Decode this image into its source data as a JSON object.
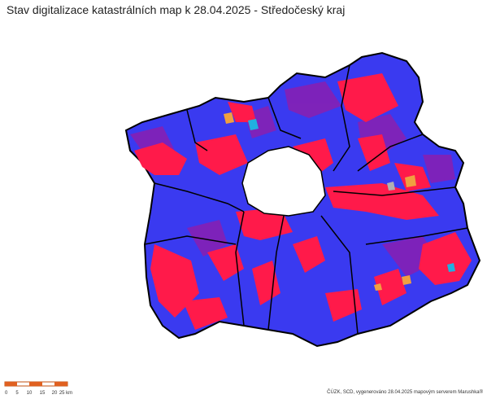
{
  "title": "Stav digitalizace katastrálních map k 28.04.2025 - Středočeský kraj",
  "scale_bar": {
    "labels": [
      "0",
      "5",
      "10",
      "15",
      "20",
      "25 km"
    ]
  },
  "credit": "ČÚZK, SCD, vygenerováno 28.04.2025 mapovým serverem Marushka®"
}
